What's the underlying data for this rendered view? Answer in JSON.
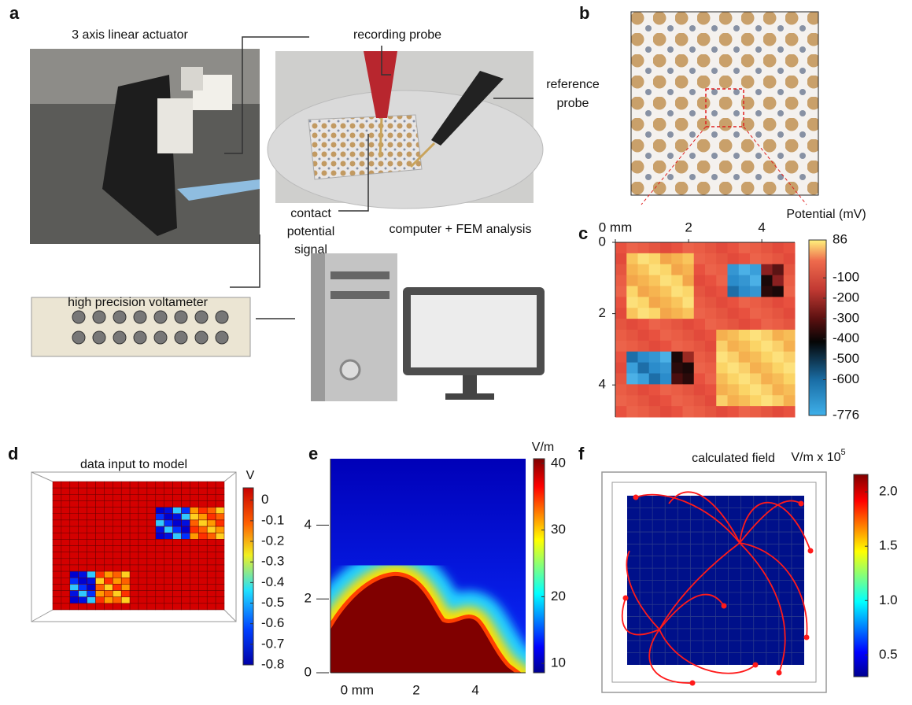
{
  "panel_labels": [
    "a",
    "b",
    "c",
    "d",
    "e",
    "f"
  ],
  "panel_a": {
    "actuator": "3 axis linear actuator",
    "recording_probe": "recording probe",
    "reference_probe": [
      "reference",
      "probe"
    ],
    "contact_signal": [
      "contact",
      "potential",
      "signal"
    ],
    "computer": "computer + FEM analysis",
    "voltameter": "high precision voltameter"
  },
  "panel_c": {
    "colorbar_label": "Potential (mV)",
    "xlim": [
      0,
      4.9
    ],
    "xticks": [
      {
        "value": 0,
        "label": "0 mm"
      },
      2,
      4
    ],
    "ylim": [
      0,
      4.9
    ],
    "yticks": [
      0,
      2,
      4
    ],
    "clim": [
      -776,
      86
    ],
    "cticks": [
      86,
      -100,
      -200,
      -300,
      -400,
      -500,
      -600,
      -776
    ]
  },
  "panel_d": {
    "title": "data input to model",
    "colorbar_label": "V",
    "clim": [
      -0.8,
      0.06
    ],
    "cticks": [
      0,
      -0.1,
      -0.2,
      -0.3,
      -0.4,
      -0.5,
      -0.6,
      -0.7,
      -0.8
    ]
  },
  "panel_e": {
    "colorbar_label": "V/m",
    "xlim": [
      -0.9,
      5.7
    ],
    "xticks": [
      {
        "value": 0,
        "label": "0 mm"
      },
      2,
      4
    ],
    "ylim": [
      0,
      5.8
    ],
    "yticks": [
      0,
      2,
      4
    ],
    "clim": [
      8.6,
      40.7
    ],
    "cticks": [
      40,
      30,
      20,
      10
    ]
  },
  "panel_f": {
    "title": "calculated field",
    "colorbar_label": "V/m x 10",
    "colorbar_label_sup": "5",
    "clim": [
      0.3,
      2.16
    ],
    "cticks": [
      {
        "value": 2,
        "label": "2.0"
      },
      1.5,
      {
        "value": 1,
        "label": "1.0"
      },
      0.5
    ]
  }
}
